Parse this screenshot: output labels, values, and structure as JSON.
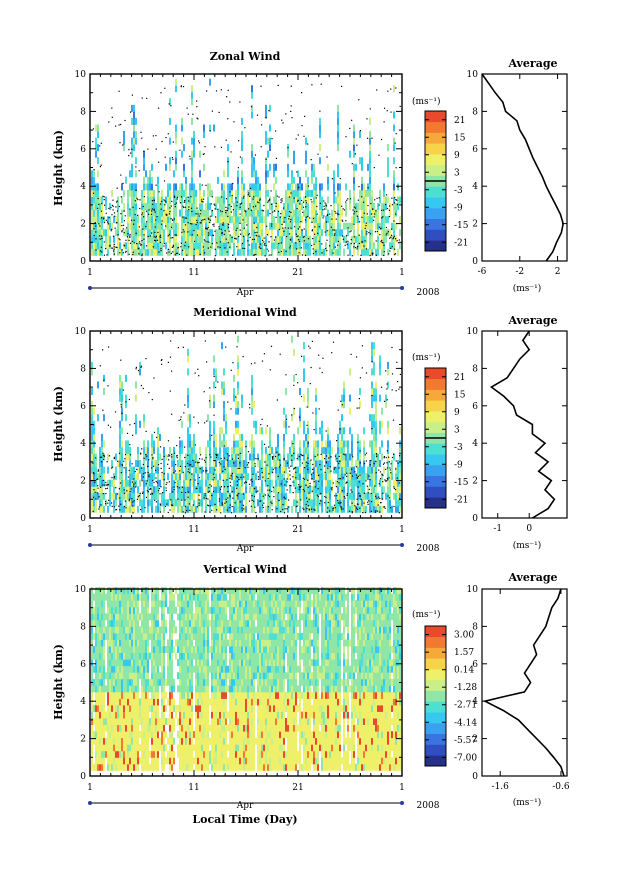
{
  "figure": {
    "xlabel": "Local Time (Day)",
    "month_label": "Apr",
    "year_label": "2008",
    "x_ticks": [
      "1",
      "11",
      "21",
      "1"
    ],
    "ylabel": "Height (km)",
    "y_ticks": [
      "0",
      "2",
      "4",
      "6",
      "8",
      "10"
    ],
    "units": "(ms⁻¹)",
    "avg_title": "Average",
    "avg_xlabel": "(ms⁻¹)"
  },
  "colors": {
    "scale": [
      "#262f8a",
      "#2f4fc0",
      "#3a74e0",
      "#3aa1f0",
      "#37c8f2",
      "#4de0d2",
      "#8fe6a6",
      "#c8ef8a",
      "#eef06a",
      "#f7d34a",
      "#f7a83a",
      "#f17a30",
      "#e84a2b"
    ]
  },
  "chart_data": [
    {
      "type": "heatmap",
      "title": "Zonal Wind",
      "x_range_days": [
        1,
        31
      ],
      "ylim": [
        0,
        10
      ],
      "colorbar_ticks": [
        "21",
        "15",
        "9",
        "3",
        "-3",
        "-9",
        "-15",
        "-21"
      ],
      "colorbar_range": [
        -24,
        24
      ],
      "contour_line": 0,
      "average_profile": {
        "title": "Average",
        "xlim": [
          -6,
          3
        ],
        "x_ticks": [
          "-6",
          "-2",
          "2"
        ],
        "height_km": [
          0,
          0.5,
          1,
          1.5,
          2,
          2.5,
          3,
          3.5,
          4,
          4.5,
          5,
          5.5,
          6,
          6.5,
          7,
          7.5,
          8,
          8.5,
          9,
          9.5,
          10
        ],
        "values": [
          0.8,
          1.5,
          1.9,
          2.4,
          2.6,
          2.3,
          1.8,
          1.3,
          0.8,
          0.4,
          -0.1,
          -0.6,
          -1.0,
          -1.4,
          -2.0,
          -2.3,
          -3.5,
          -3.8,
          -4.6,
          -5.3,
          -6.0
        ]
      }
    },
    {
      "type": "heatmap",
      "title": "Meridional Wind",
      "x_range_days": [
        1,
        31
      ],
      "ylim": [
        0,
        10
      ],
      "colorbar_ticks": [
        "21",
        "15",
        "9",
        "3",
        "-3",
        "-9",
        "-15",
        "-21"
      ],
      "colorbar_range": [
        -24,
        24
      ],
      "contour_line": 0,
      "average_profile": {
        "title": "Average",
        "xlim": [
          -1.5,
          1.2
        ],
        "x_ticks": [
          "-1",
          "0"
        ],
        "height_km": [
          0,
          0.5,
          1,
          1.5,
          2,
          2.5,
          3,
          3.5,
          4,
          4.5,
          5,
          5.5,
          6,
          6.5,
          7,
          7.5,
          8,
          8.5,
          9,
          9.5,
          10
        ],
        "values": [
          0.1,
          0.6,
          0.8,
          0.5,
          0.7,
          0.3,
          0.6,
          0.2,
          0.5,
          0.1,
          0.1,
          -0.4,
          -0.5,
          -0.8,
          -1.2,
          -0.7,
          -0.5,
          -0.3,
          0.0,
          -0.2,
          0.0
        ]
      }
    },
    {
      "type": "heatmap",
      "title": "Vertical Wind",
      "x_range_days": [
        1,
        31
      ],
      "ylim": [
        0,
        10
      ],
      "colorbar_ticks": [
        "3.00",
        "1.57",
        "0.14",
        "-1.28",
        "-2.71",
        "-4.14",
        "-5.57",
        "-7.00"
      ],
      "colorbar_range": [
        -7.7,
        3.7
      ],
      "contour_line": null,
      "average_profile": {
        "title": "Average",
        "xlim": [
          -1.9,
          -0.5
        ],
        "x_ticks": [
          "-1.6",
          "-0.6"
        ],
        "height_km": [
          0,
          0.5,
          1,
          1.5,
          2,
          2.5,
          3,
          3.5,
          4,
          4.2,
          4.5,
          5,
          5.5,
          6,
          6.5,
          7,
          7.5,
          8,
          8.5,
          9,
          9.5,
          10
        ],
        "values": [
          -0.55,
          -0.6,
          -0.72,
          -0.85,
          -1.0,
          -1.15,
          -1.3,
          -1.55,
          -1.85,
          -1.6,
          -1.2,
          -1.1,
          -1.2,
          -1.1,
          -1.0,
          -1.05,
          -0.95,
          -0.85,
          -0.8,
          -0.75,
          -0.65,
          -0.6
        ]
      }
    }
  ]
}
